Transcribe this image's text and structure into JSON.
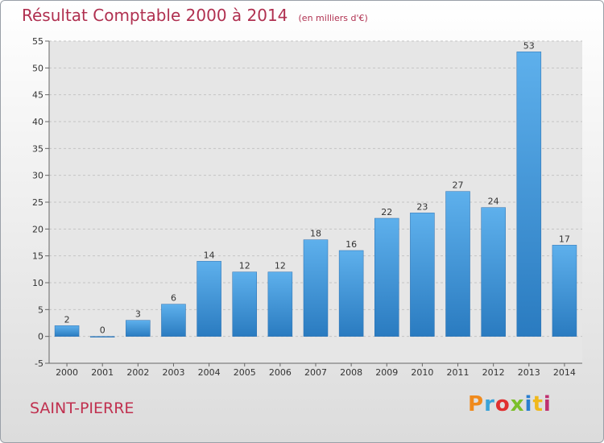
{
  "header": {
    "title": "Résultat Comptable 2000 à 2014",
    "unit": "(en milliers d'€)"
  },
  "footer": {
    "commune": "SAINT-PIERRE",
    "brand": "Proxiti",
    "brand_colors": [
      "#f08a1c",
      "#3aa3d8",
      "#e03030",
      "#7cbf2a",
      "#2a7fd0",
      "#f0b81c",
      "#c03070"
    ]
  },
  "chart_data": {
    "type": "bar",
    "categories": [
      "2000",
      "2001",
      "2002",
      "2003",
      "2004",
      "2005",
      "2006",
      "2007",
      "2008",
      "2009",
      "2010",
      "2011",
      "2012",
      "2013",
      "2014"
    ],
    "values": [
      2,
      0,
      3,
      6,
      14,
      12,
      12,
      18,
      16,
      22,
      23,
      27,
      24,
      53,
      17
    ],
    "ylim": [
      -5,
      55
    ],
    "yticks": [
      -5,
      0,
      5,
      10,
      15,
      20,
      25,
      30,
      35,
      40,
      45,
      50,
      55
    ],
    "grid": true,
    "bar_color": "#3a8fd6"
  }
}
